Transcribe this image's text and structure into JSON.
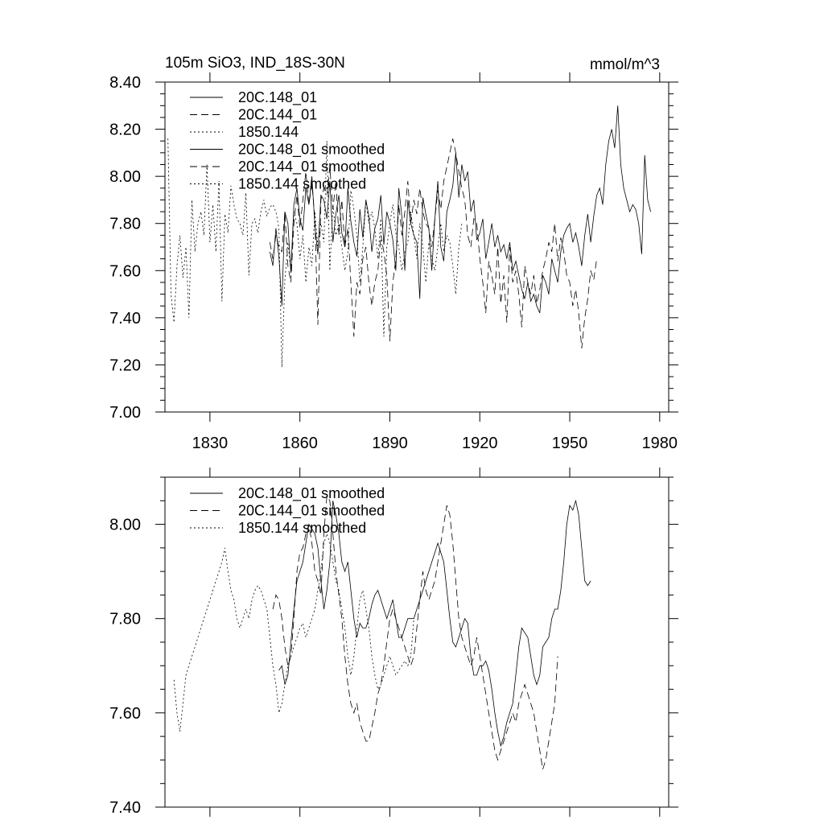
{
  "chart_data": [
    {
      "type": "line",
      "title": "105m SiO3, IND_18S-30N",
      "units": "mmol/m^3",
      "xlim": [
        1815,
        1983
      ],
      "ylim": [
        7.0,
        8.4
      ],
      "x_major_ticks": [
        1830,
        1860,
        1890,
        1920,
        1950,
        1980
      ],
      "x_tick_labels": [
        "1830",
        "1860",
        "1890",
        "1920",
        "1950",
        "1980"
      ],
      "y_major_ticks": [
        7.0,
        7.2,
        7.4,
        7.6,
        7.8,
        8.0,
        8.2,
        8.4
      ],
      "y_tick_labels": [
        "7.00",
        "7.20",
        "7.40",
        "7.60",
        "7.80",
        "8.00",
        "8.20",
        "8.40"
      ],
      "legend_location": "top-left",
      "series": [
        {
          "name": "20C.148_01",
          "dash": "solid",
          "x_start": 1850,
          "values": [
            7.68,
            7.62,
            7.78,
            7.66,
            7.45,
            7.85,
            7.8,
            7.59,
            7.88,
            7.95,
            7.82,
            7.77,
            7.95,
            7.88,
            8.0,
            7.79,
            7.67,
            7.92,
            7.9,
            7.82,
            7.98,
            7.72,
            7.84,
            7.92,
            7.76,
            7.7,
            7.95,
            7.81,
            7.72,
            7.66,
            7.86,
            7.74,
            7.9,
            7.83,
            7.68,
            7.78,
            7.82,
            7.92,
            7.71,
            7.85,
            7.8,
            7.73,
            7.6,
            7.95,
            7.83,
            7.6,
            7.9,
            7.8,
            7.75,
            7.72,
            7.48,
            7.91,
            7.84,
            7.78,
            7.6,
            7.82,
            7.98,
            7.7,
            7.64,
            7.85,
            7.9,
            7.96,
            8.1,
            7.91,
            8.05,
            7.98,
            8.02,
            7.85,
            7.9,
            7.73,
            7.76,
            7.82,
            7.65,
            7.72,
            7.8,
            7.7,
            7.75,
            7.68,
            7.71,
            7.65,
            7.72,
            7.6,
            7.64,
            7.58,
            7.52,
            7.48,
            7.55,
            7.47,
            7.5,
            7.45,
            7.42,
            7.58,
            7.55,
            7.5,
            7.65,
            7.6,
            7.55,
            7.68,
            7.75,
            7.78,
            7.8,
            7.72,
            7.76,
            7.7,
            7.62,
            7.75,
            7.84,
            7.72,
            7.83,
            7.92,
            7.95,
            7.88,
            8.05,
            8.15,
            8.2,
            8.12,
            8.3,
            8.05,
            7.95,
            7.9,
            7.85,
            7.88,
            7.86,
            7.8,
            7.67,
            8.09,
            7.9,
            7.85
          ]
        },
        {
          "name": "20C.144_01",
          "dash": "long-dash",
          "x_start": 1850,
          "values": [
            7.72,
            7.65,
            7.75,
            7.7,
            7.68,
            7.85,
            7.62,
            7.55,
            7.8,
            7.92,
            7.78,
            7.9,
            8.02,
            7.88,
            7.97,
            7.82,
            7.37,
            7.9,
            7.95,
            7.92,
            8.04,
            7.86,
            7.98,
            7.75,
            7.9,
            7.7,
            7.78,
            7.55,
            7.32,
            7.55,
            7.5,
            7.65,
            7.7,
            7.55,
            7.45,
            7.55,
            7.6,
            7.75,
            7.68,
            7.58,
            7.3,
            7.55,
            7.65,
            7.88,
            7.75,
            7.85,
            7.98,
            7.8,
            7.9,
            7.84,
            7.95,
            7.85,
            7.8,
            7.78,
            7.7,
            7.82,
            7.94,
            7.86,
            7.98,
            8.04,
            8.1,
            8.16,
            8.1,
            8.02,
            7.95,
            7.9,
            7.75,
            7.7,
            7.82,
            7.8,
            7.65,
            7.55,
            7.42,
            7.64,
            7.58,
            7.5,
            7.7,
            7.46,
            7.58,
            7.38,
            7.7,
            7.55,
            7.6,
            7.5,
            7.36,
            7.62,
            7.55,
            7.5,
            7.58,
            7.46,
            7.52,
            7.6,
            7.65,
            7.72,
            7.68,
            7.8,
            7.64,
            7.74,
            7.68,
            7.58,
            7.55,
            7.45,
            7.52,
            7.42,
            7.27,
            7.4,
            7.48,
            7.6,
            7.56,
            7.65
          ]
        },
        {
          "name": "1850.144",
          "dash": "dotted",
          "x_start": 1816,
          "values": [
            8.16,
            7.5,
            7.38,
            7.62,
            7.75,
            7.57,
            7.7,
            7.4,
            7.9,
            7.68,
            7.8,
            7.85,
            7.75,
            8.05,
            7.72,
            7.88,
            7.68,
            7.98,
            7.47,
            7.84,
            7.76,
            7.96,
            7.88,
            7.82,
            7.8,
            7.75,
            7.93,
            7.58,
            7.8,
            7.82,
            7.76,
            7.85,
            7.9,
            7.83,
            7.87,
            7.88,
            7.85,
            7.78,
            7.19,
            7.56,
            7.72,
            7.6,
            7.85,
            7.8,
            7.65,
            7.75,
            7.55,
            7.7,
            7.62,
            7.85,
            7.7,
            7.8,
            7.72,
            8.15,
            7.6,
            7.88,
            7.75,
            7.8,
            7.7,
            7.6,
            7.68,
            7.94,
            7.86,
            7.75,
            7.55,
            7.7,
            7.9,
            7.8,
            7.85,
            7.78,
            7.65,
            7.82,
            7.32,
            7.7,
            7.8,
            7.88,
            7.76,
            7.7,
            7.6,
            7.68,
            7.72,
            7.85,
            7.75,
            7.65,
            7.8,
            7.7,
            7.55,
            7.72,
            7.65,
            7.6,
            7.7,
            7.8,
            7.68,
            7.75,
            7.72,
            7.62,
            7.5,
            7.7,
            7.8
          ]
        }
      ]
    },
    {
      "type": "line",
      "title": "",
      "xlim": [
        1815,
        1983
      ],
      "ylim": [
        7.4,
        8.1
      ],
      "x_major_ticks": [
        1830,
        1860,
        1890,
        1920,
        1950,
        1980
      ],
      "y_major_ticks": [
        7.4,
        7.6,
        7.8,
        8.0
      ],
      "y_tick_labels": [
        "7.40",
        "7.60",
        "7.80",
        "8.00"
      ],
      "legend_location": "top-left",
      "series": [
        {
          "name": "20C.148_01 smoothed",
          "dash": "solid",
          "x_start": 1853,
          "values": [
            7.69,
            7.7,
            7.66,
            7.68,
            7.75,
            7.82,
            7.88,
            7.9,
            7.92,
            7.96,
            8.0,
            7.99,
            7.98,
            7.95,
            7.88,
            7.82,
            7.86,
            7.92,
            8.05,
            8.02,
            7.98,
            7.92,
            7.9,
            7.92,
            7.86,
            7.8,
            7.76,
            7.79,
            7.78,
            7.78,
            7.8,
            7.83,
            7.85,
            7.86,
            7.84,
            7.82,
            7.8,
            7.82,
            7.84,
            7.8,
            7.76,
            7.76,
            7.78,
            7.8,
            7.8,
            7.8,
            7.82,
            7.84,
            7.86,
            7.88,
            7.9,
            7.92,
            7.94,
            7.96,
            7.94,
            7.92,
            7.86,
            7.8,
            7.75,
            7.74,
            7.76,
            7.78,
            7.8,
            7.79,
            7.72,
            7.68,
            7.68,
            7.7,
            7.7,
            7.71,
            7.69,
            7.65,
            7.6,
            7.56,
            7.53,
            7.55,
            7.58,
            7.6,
            7.62,
            7.68,
            7.74,
            7.78,
            7.77,
            7.76,
            7.72,
            7.68,
            7.66,
            7.68,
            7.74,
            7.75,
            7.76,
            7.8,
            7.82,
            7.82,
            7.86,
            7.92,
            8.0,
            8.04,
            8.03,
            8.05,
            8.02,
            7.95,
            7.88,
            7.87,
            7.88
          ]
        },
        {
          "name": "20C.144_01 smoothed",
          "dash": "long-dash",
          "x_start": 1851,
          "values": [
            7.82,
            7.85,
            7.84,
            7.8,
            7.74,
            7.7,
            7.72,
            7.8,
            7.9,
            7.94,
            7.95,
            7.98,
            8.0,
            7.96,
            7.9,
            7.88,
            7.85,
            7.98,
            8.06,
            8.05,
            7.98,
            7.9,
            7.85,
            7.8,
            7.72,
            7.66,
            7.62,
            7.6,
            7.62,
            7.58,
            7.56,
            7.54,
            7.54,
            7.57,
            7.6,
            7.64,
            7.66,
            7.7,
            7.75,
            7.8,
            7.82,
            7.8,
            7.78,
            7.76,
            7.74,
            7.72,
            7.7,
            7.72,
            7.78,
            7.84,
            7.9,
            7.86,
            7.84,
            7.86,
            7.88,
            7.92,
            7.96,
            8.0,
            8.04,
            8.02,
            7.96,
            7.88,
            7.8,
            7.76,
            7.74,
            7.72,
            7.7,
            7.72,
            7.76,
            7.72,
            7.68,
            7.64,
            7.6,
            7.56,
            7.52,
            7.5,
            7.52,
            7.54,
            7.56,
            7.58,
            7.6,
            7.58,
            7.62,
            7.64,
            7.66,
            7.64,
            7.62,
            7.6,
            7.56,
            7.52,
            7.48,
            7.5,
            7.54,
            7.58,
            7.62,
            7.72
          ]
        },
        {
          "name": "1850.144 smoothed",
          "dash": "dotted",
          "x_start": 1818,
          "values": [
            7.67,
            7.6,
            7.56,
            7.62,
            7.68,
            7.7,
            7.72,
            7.74,
            7.76,
            7.78,
            7.8,
            7.82,
            7.84,
            7.86,
            7.88,
            7.9,
            7.92,
            7.95,
            7.9,
            7.86,
            7.84,
            7.8,
            7.78,
            7.8,
            7.82,
            7.8,
            7.84,
            7.86,
            7.87,
            7.86,
            7.84,
            7.82,
            7.76,
            7.7,
            7.66,
            7.6,
            7.62,
            7.66,
            7.7,
            7.72,
            7.74,
            7.76,
            7.78,
            7.79,
            7.76,
            7.78,
            7.8,
            7.82,
            7.86,
            7.9,
            7.96,
            7.98,
            7.96,
            7.92,
            7.88,
            7.86,
            7.82,
            7.78,
            7.72,
            7.68,
            7.72,
            7.78,
            7.84,
            7.86,
            7.82,
            7.78,
            7.72,
            7.68,
            7.65,
            7.66,
            7.68,
            7.7,
            7.72,
            7.7,
            7.68,
            7.69,
            7.7,
            7.71,
            7.7,
            7.72,
            7.8
          ]
        }
      ]
    }
  ]
}
